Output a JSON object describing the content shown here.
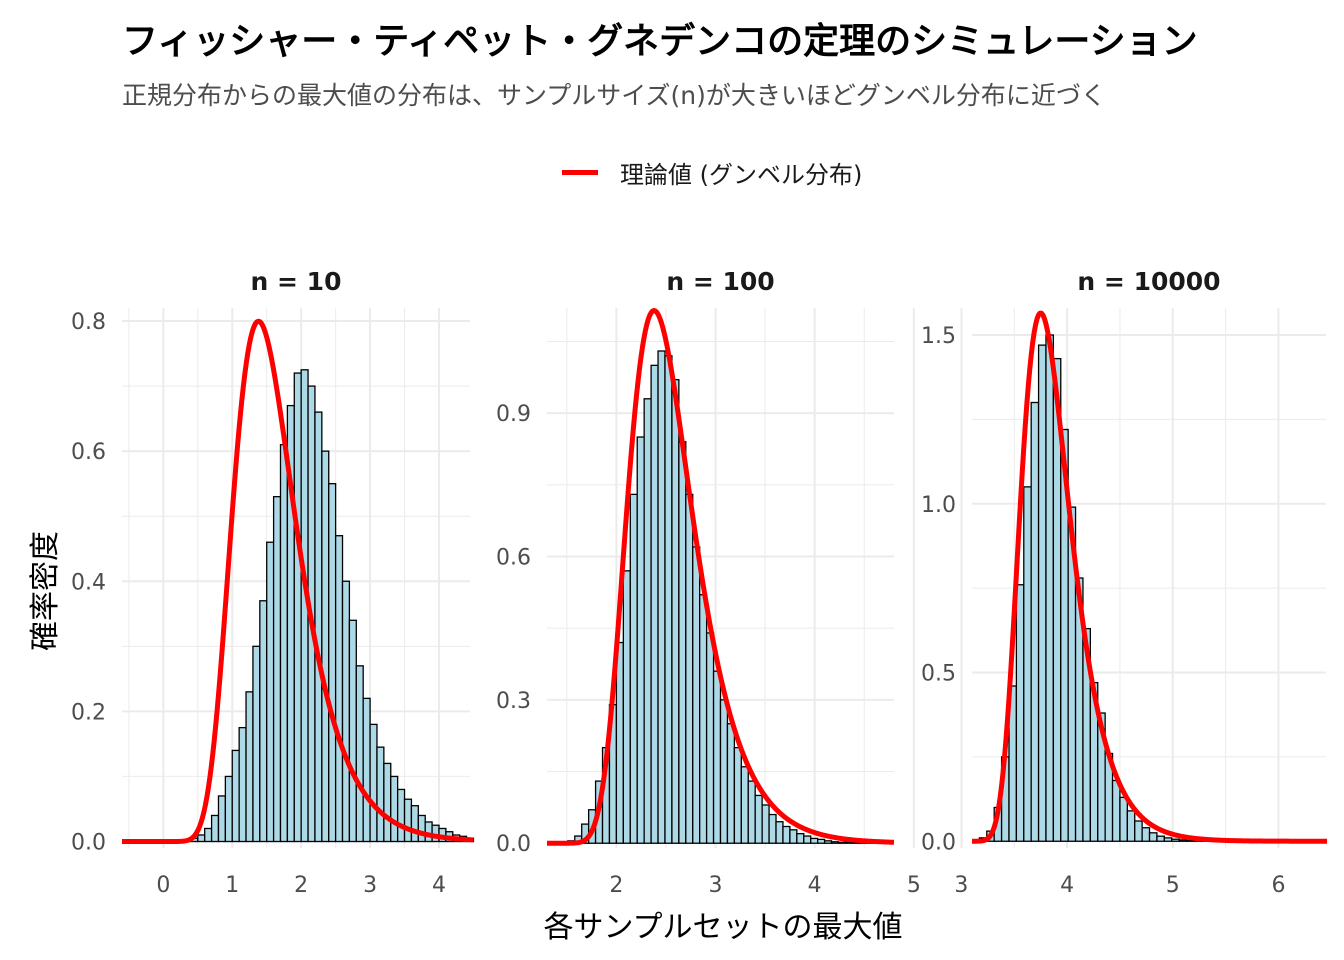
{
  "title": "フィッシャー・ティペット・グネデンコの定理のシミュレーション",
  "subtitle": "正規分布からの最大値の分布は、サンプルサイズ(n)が大きいほどグンベル分布に近づく",
  "legend": {
    "label": "理論値 (グンベル分布)",
    "color": "#ff0000"
  },
  "colors": {
    "bar_fill": "#add8e6",
    "bar_stroke": "#000000",
    "curve": "#ff0000",
    "grid": "#ebebeb"
  },
  "chart_data": {
    "type": "histogram+line",
    "xlabel": "各サンプルセットの最大値",
    "ylabel": "確率密度",
    "legend_position": "top",
    "grid": true,
    "facets": [
      {
        "label": "n = 10",
        "xlim": [
          -0.6,
          4.45
        ],
        "ylim": [
          -0.01,
          0.82
        ],
        "x_ticks": [
          0,
          1,
          2,
          3,
          4
        ],
        "y_ticks": [
          "0.0",
          "0.2",
          "0.4",
          "0.6",
          "0.8"
        ],
        "bins": {
          "start": -0.6,
          "width": 0.1,
          "density": [
            0,
            0,
            0,
            0,
            0,
            0,
            0,
            0,
            0,
            0.003,
            0.005,
            0.01,
            0.02,
            0.04,
            0.07,
            0.1,
            0.14,
            0.175,
            0.23,
            0.3,
            0.37,
            0.46,
            0.53,
            0.61,
            0.67,
            0.72,
            0.725,
            0.7,
            0.66,
            0.6,
            0.55,
            0.47,
            0.4,
            0.34,
            0.27,
            0.22,
            0.18,
            0.145,
            0.12,
            0.1,
            0.08,
            0.065,
            0.055,
            0.04,
            0.03,
            0.025,
            0.02,
            0.015,
            0.01,
            0.008,
            0.005
          ]
        },
        "gumbel": {
          "mu": 1.38,
          "beta": 0.46
        }
      },
      {
        "label": "n = 100",
        "xlim": [
          1.3,
          4.8
        ],
        "ylim": [
          -0.01,
          1.12
        ],
        "x_ticks": [
          2,
          3,
          4,
          5
        ],
        "y_ticks": [
          "0.0",
          "0.3",
          "0.6",
          "0.9"
        ],
        "bins": {
          "start": 1.3,
          "width": 0.07,
          "density": [
            0,
            0,
            0,
            0.005,
            0.015,
            0.04,
            0.07,
            0.13,
            0.2,
            0.29,
            0.42,
            0.57,
            0.73,
            0.85,
            0.93,
            1.0,
            1.03,
            1.02,
            0.97,
            0.84,
            0.73,
            0.62,
            0.52,
            0.44,
            0.36,
            0.3,
            0.25,
            0.2,
            0.16,
            0.13,
            0.1,
            0.08,
            0.06,
            0.045,
            0.035,
            0.028,
            0.02,
            0.015,
            0.01,
            0.008,
            0.005,
            0.003,
            0.002,
            0.002,
            0.001,
            0.001,
            0.001,
            0,
            0,
            0
          ]
        },
        "gumbel": {
          "mu": 2.38,
          "beta": 0.33
        }
      },
      {
        "label": "n = 10000",
        "xlim": [
          3.1,
          6.45
        ],
        "ylim": [
          -0.02,
          1.58
        ],
        "x_ticks": [
          3,
          4,
          5,
          6
        ],
        "y_ticks": [
          "0.0",
          "0.5",
          "1.0",
          "1.5"
        ],
        "bins": {
          "start": 3.1,
          "width": 0.07,
          "density": [
            0,
            0.01,
            0.03,
            0.1,
            0.25,
            0.46,
            0.76,
            1.05,
            1.3,
            1.47,
            1.5,
            1.43,
            1.22,
            0.99,
            0.78,
            0.63,
            0.47,
            0.38,
            0.26,
            0.18,
            0.13,
            0.09,
            0.06,
            0.04,
            0.025,
            0.015,
            0.01,
            0.006,
            0.004,
            0.002,
            0.001,
            0.001,
            0,
            0,
            0,
            0,
            0,
            0,
            0,
            0,
            0,
            0,
            0,
            0,
            0,
            0,
            0,
            0
          ]
        },
        "gumbel": {
          "mu": 3.75,
          "beta": 0.235
        }
      }
    ]
  }
}
